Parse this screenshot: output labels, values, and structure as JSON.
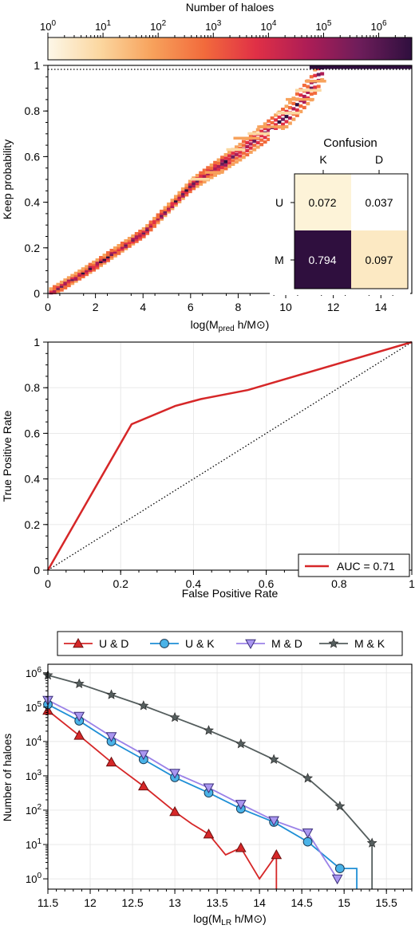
{
  "chart_data": [
    {
      "type": "heatmap",
      "colorbar": {
        "title": "Number of haloes",
        "scale": "log",
        "ticks": [
          {
            "base": "10",
            "exp": "0"
          },
          {
            "base": "10",
            "exp": "1"
          },
          {
            "base": "10",
            "exp": "2"
          },
          {
            "base": "10",
            "exp": "3"
          },
          {
            "base": "10",
            "exp": "4"
          },
          {
            "base": "10",
            "exp": "5"
          },
          {
            "base": "10",
            "exp": "6"
          }
        ],
        "range_exp": [
          0,
          6.6
        ],
        "colors": [
          "#fdf7e8",
          "#fbd7a0",
          "#f7a25c",
          "#f26b3c",
          "#e03046",
          "#ad1d56",
          "#6d1d5a",
          "#2f0f3e"
        ]
      },
      "xlabel": {
        "main": "log(M",
        "sub": "pred",
        "rest": " h/M",
        "sym": "⊙",
        "close": ")"
      },
      "ylabel": "Keep probability",
      "xlim": [
        0,
        15.3
      ],
      "ylim": [
        0,
        1
      ],
      "xticks": [
        "0",
        "2",
        "4",
        "6",
        "8",
        "10",
        "12",
        "14"
      ],
      "yticks": [
        "0",
        "0.2",
        "0.4",
        "0.6",
        "0.8",
        "1"
      ],
      "reference_line_y": 1,
      "diagonal_trend": [
        [
          0,
          0
        ],
        [
          2,
          0.13
        ],
        [
          4,
          0.27
        ],
        [
          6,
          0.48
        ],
        [
          8,
          0.62
        ],
        [
          10,
          0.78
        ],
        [
          11,
          0.9
        ],
        [
          11.5,
          1.0
        ]
      ],
      "confusion": {
        "title": "Confusion",
        "cols": [
          "K",
          "D"
        ],
        "rows": [
          "U",
          "M"
        ],
        "values": [
          [
            "0.072",
            "0.037"
          ],
          [
            "0.794",
            "0.097"
          ]
        ],
        "colors": [
          [
            "#fdf3d8",
            "#ffffff"
          ],
          [
            "#2f0f3e",
            "#fce9c3"
          ]
        ]
      }
    },
    {
      "type": "line",
      "xlabel": "False Positive Rate",
      "ylabel": "True Positive Rate",
      "xlim": [
        0,
        1
      ],
      "ylim": [
        0,
        1
      ],
      "xticks": [
        "0",
        "0.2",
        "0.4",
        "0.6",
        "0.8",
        "1"
      ],
      "yticks": [
        "0",
        "0.2",
        "0.4",
        "0.6",
        "0.8",
        "1"
      ],
      "grid": true,
      "legend": "bottom-right",
      "series": [
        {
          "name": "AUC = 0.71",
          "color": "#d62728",
          "x": [
            0,
            0.23,
            0.35,
            0.42,
            0.55,
            1
          ],
          "y": [
            0,
            0.64,
            0.72,
            0.75,
            0.79,
            1
          ]
        }
      ],
      "diagonal": {
        "x": [
          0,
          1
        ],
        "y": [
          0,
          1
        ],
        "style": "dotted"
      }
    },
    {
      "type": "line",
      "yscale": "log",
      "xlabel": {
        "main": "log(M",
        "sub": "LR",
        "rest": " h/M",
        "sym": "⊙",
        "close": ")"
      },
      "ylabel": "Number of haloes",
      "xlim": [
        11.5,
        15.8
      ],
      "ylim_exp": [
        -0.3,
        6.25
      ],
      "xticks": [
        "11.5",
        "12",
        "12.5",
        "13",
        "13.5",
        "14",
        "14.5",
        "15",
        "15.5"
      ],
      "yticks": [
        {
          "base": "10",
          "exp": "0"
        },
        {
          "base": "10",
          "exp": "1"
        },
        {
          "base": "10",
          "exp": "2"
        },
        {
          "base": "10",
          "exp": "3"
        },
        {
          "base": "10",
          "exp": "4"
        },
        {
          "base": "10",
          "exp": "5"
        },
        {
          "base": "10",
          "exp": "6"
        }
      ],
      "grid": true,
      "legend": "top",
      "series": [
        {
          "name": "U & D",
          "color": "#d62728",
          "marker": "triangle-up",
          "x": [
            11.5,
            11.87,
            12.25,
            12.63,
            13.0,
            13.2,
            13.4,
            13.6,
            13.78,
            14.0,
            14.2,
            14.2
          ],
          "y": [
            80000,
            15000,
            2500,
            500,
            90,
            40,
            20,
            5,
            8,
            1,
            5,
            0.3
          ],
          "markers": [
            true,
            true,
            true,
            true,
            true,
            false,
            true,
            false,
            true,
            false,
            true,
            false
          ]
        },
        {
          "name": "U & K",
          "color": "#1f8fd6",
          "marker": "circle",
          "fill": "#4ab3e8",
          "x": [
            11.5,
            11.87,
            12.25,
            12.63,
            13.0,
            13.4,
            13.78,
            14.17,
            14.57,
            14.95,
            15.15,
            15.15
          ],
          "y": [
            120000,
            40000,
            10000,
            3000,
            900,
            320,
            110,
            45,
            12,
            2,
            2,
            0.3
          ],
          "markers": [
            true,
            true,
            true,
            true,
            true,
            true,
            true,
            true,
            true,
            true,
            false,
            false
          ]
        },
        {
          "name": "M & D",
          "color": "#9b82e8",
          "marker": "triangle-down",
          "fill": "#a996f0",
          "x": [
            11.5,
            11.87,
            12.25,
            12.63,
            13.0,
            13.4,
            13.78,
            14.17,
            14.57,
            14.92
          ],
          "y": [
            160000,
            55000,
            14000,
            4200,
            1200,
            450,
            150,
            50,
            22,
            1
          ],
          "markers": [
            true,
            true,
            true,
            true,
            true,
            true,
            true,
            true,
            true,
            true
          ]
        },
        {
          "name": "M & K",
          "color": "#555e5e",
          "marker": "star",
          "fill": "#555e5e",
          "x": [
            11.5,
            11.87,
            12.25,
            12.63,
            13.0,
            13.4,
            13.78,
            14.17,
            14.57,
            14.95,
            15.33,
            15.33
          ],
          "y": [
            850000,
            480000,
            230000,
            110000,
            50000,
            21000,
            8500,
            3000,
            850,
            130,
            11,
            0.3
          ],
          "markers": [
            true,
            true,
            true,
            true,
            true,
            true,
            true,
            true,
            true,
            true,
            true,
            false
          ]
        }
      ]
    }
  ]
}
